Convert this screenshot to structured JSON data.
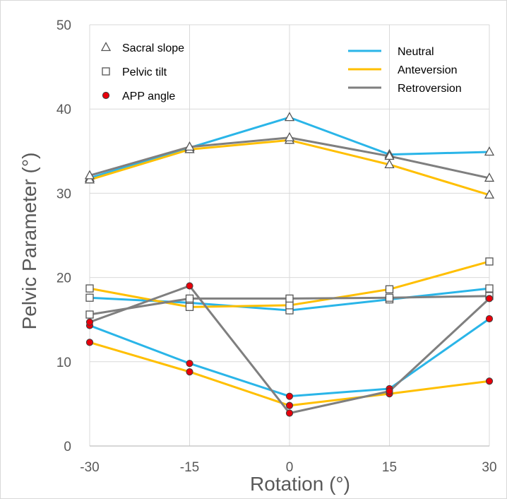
{
  "chart_data": {
    "type": "line",
    "xlabel": "Rotation (°)",
    "ylabel": "Pelvic Parameter (°)",
    "x": [
      -30,
      -15,
      0,
      15,
      30
    ],
    "xlim": [
      -30,
      30
    ],
    "ylim": [
      0,
      50
    ],
    "x_ticks": [
      "-30",
      "-15",
      "0",
      "15",
      "30"
    ],
    "y_ticks": [
      "0",
      "10",
      "20",
      "30",
      "40",
      "50"
    ],
    "grid": true,
    "colors": {
      "Neutral": "#2ab5e8",
      "Anteversion": "#ffbf00",
      "Retroversion": "#7f7f7f"
    },
    "legend_conditions": [
      "Neutral",
      "Anteversion",
      "Retroversion"
    ],
    "legend_parameters": [
      {
        "label": "Sacral slope",
        "marker": "triangle"
      },
      {
        "label": "Pelvic tilt",
        "marker": "square"
      },
      {
        "label": "APP angle",
        "marker": "circle"
      }
    ],
    "series": [
      {
        "parameter": "Sacral slope",
        "condition": "Neutral",
        "marker": "triangle",
        "values": [
          31.8,
          35.4,
          39.0,
          34.6,
          34.9
        ]
      },
      {
        "parameter": "Sacral slope",
        "condition": "Anteversion",
        "marker": "triangle",
        "values": [
          31.6,
          35.2,
          36.3,
          33.4,
          29.8
        ]
      },
      {
        "parameter": "Sacral slope",
        "condition": "Retroversion",
        "marker": "triangle",
        "values": [
          32.1,
          35.5,
          36.6,
          34.4,
          31.8
        ]
      },
      {
        "parameter": "Pelvic tilt",
        "condition": "Neutral",
        "marker": "square",
        "values": [
          17.6,
          17.0,
          16.1,
          17.4,
          18.7
        ]
      },
      {
        "parameter": "Pelvic tilt",
        "condition": "Anteversion",
        "marker": "square",
        "values": [
          18.7,
          16.5,
          16.7,
          18.6,
          21.9
        ]
      },
      {
        "parameter": "Pelvic tilt",
        "condition": "Retroversion",
        "marker": "square",
        "values": [
          15.6,
          17.5,
          17.5,
          17.6,
          17.8
        ]
      },
      {
        "parameter": "APP angle",
        "condition": "Neutral",
        "marker": "circle",
        "values": [
          14.3,
          9.8,
          5.9,
          6.8,
          15.1
        ]
      },
      {
        "parameter": "APP angle",
        "condition": "Anteversion",
        "marker": "circle",
        "values": [
          12.3,
          8.8,
          4.8,
          6.2,
          7.7
        ]
      },
      {
        "parameter": "APP angle",
        "condition": "Retroversion",
        "marker": "circle",
        "values": [
          14.7,
          19.0,
          3.9,
          6.5,
          17.5
        ]
      }
    ]
  }
}
